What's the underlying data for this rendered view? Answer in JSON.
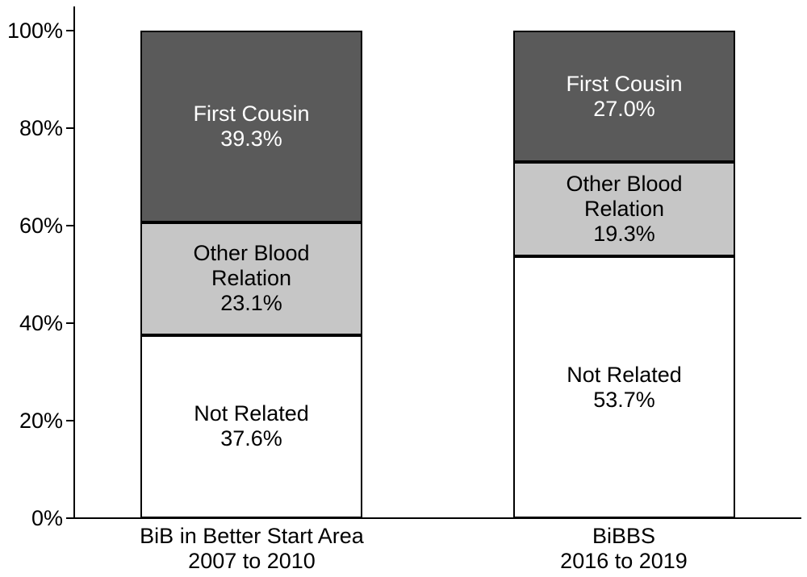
{
  "chart_data": {
    "type": "bar",
    "subtype": "stacked-100-percent",
    "title": "",
    "xlabel": "",
    "ylabel": "",
    "ylim": [
      0,
      100
    ],
    "grid": false,
    "legend_position": "none (labels printed inside segments)",
    "yticks": [
      {
        "label": "0%",
        "value": 0
      },
      {
        "label": "20%",
        "value": 20
      },
      {
        "label": "40%",
        "value": 40
      },
      {
        "label": "60%",
        "value": 60
      },
      {
        "label": "80%",
        "value": 80
      },
      {
        "label": "100%",
        "value": 100
      }
    ],
    "categories": [
      "BiB in Better Start Area 2007 to 2010",
      "BiBBS 2016 to 2019"
    ],
    "series": [
      {
        "name": "Not Related",
        "values": [
          37.6,
          53.7
        ],
        "color": "#ffffff"
      },
      {
        "name": "Other Blood Relation",
        "values": [
          23.1,
          19.3
        ],
        "color": "#c6c6c6"
      },
      {
        "name": "First Cousin",
        "values": [
          39.3,
          27.0
        ],
        "color": "#5a5a5a"
      }
    ],
    "colors": {
      "first_cousin_fill": "#5a5a5a",
      "other_blood_relation_fill": "#c6c6c6",
      "not_related_fill": "#ffffff",
      "outline": "#000000",
      "background": "#ffffff"
    },
    "bars": [
      {
        "axis_label_lines": [
          "BiB in Better Start Area",
          "2007 to 2010"
        ],
        "segments": [
          {
            "name": "First Cousin",
            "value": 39.3,
            "label_lines": [
              "First Cousin",
              "39.3%"
            ],
            "fill": "#5a5a5a",
            "text_color": "#ffffff"
          },
          {
            "name": "Other Blood Relation",
            "value": 23.1,
            "label_lines": [
              "Other Blood",
              "Relation",
              "23.1%"
            ],
            "fill": "#c6c6c6",
            "text_color": "#000000"
          },
          {
            "name": "Not Related",
            "value": 37.6,
            "label_lines": [
              "Not Related",
              "37.6%"
            ],
            "fill": "#ffffff",
            "text_color": "#000000"
          }
        ]
      },
      {
        "axis_label_lines": [
          "BiBBS",
          "2016 to 2019"
        ],
        "segments": [
          {
            "name": "First Cousin",
            "value": 27.0,
            "label_lines": [
              "First Cousin",
              "27.0%"
            ],
            "fill": "#5a5a5a",
            "text_color": "#ffffff"
          },
          {
            "name": "Other Blood Relation",
            "value": 19.3,
            "label_lines": [
              "Other Blood",
              "Relation",
              "19.3%"
            ],
            "fill": "#c6c6c6",
            "text_color": "#000000"
          },
          {
            "name": "Not Related",
            "value": 53.7,
            "label_lines": [
              "Not Related",
              "53.7%"
            ],
            "fill": "#ffffff",
            "text_color": "#000000"
          }
        ]
      }
    ]
  }
}
